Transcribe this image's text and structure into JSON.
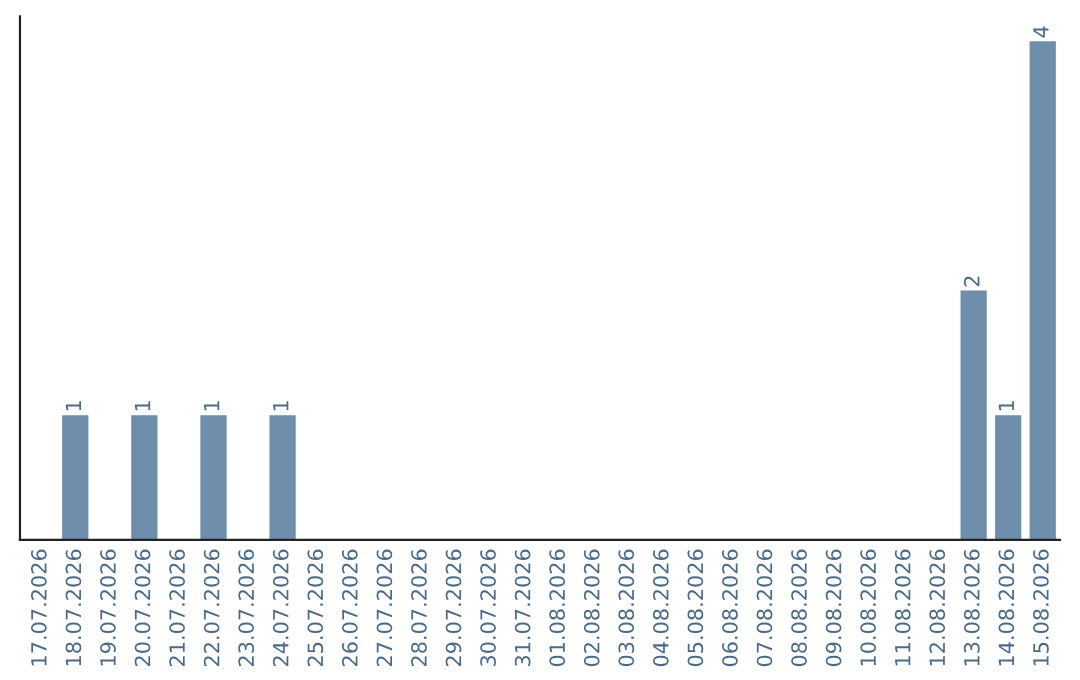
{
  "chart_data": {
    "type": "bar",
    "categories": [
      "17.07.2026",
      "18.07.2026",
      "19.07.2026",
      "20.07.2026",
      "21.07.2026",
      "22.07.2026",
      "23.07.2026",
      "24.07.2026",
      "25.07.2026",
      "26.07.2026",
      "27.07.2026",
      "28.07.2026",
      "29.07.2026",
      "30.07.2026",
      "31.07.2026",
      "01.08.2026",
      "02.08.2026",
      "03.08.2026",
      "04.08.2026",
      "05.08.2026",
      "06.08.2026",
      "07.08.2026",
      "08.08.2026",
      "09.08.2026",
      "10.08.2026",
      "11.08.2026",
      "12.08.2026",
      "13.08.2026",
      "14.08.2026",
      "15.08.2026"
    ],
    "values": [
      0,
      1,
      0,
      1,
      0,
      1,
      0,
      1,
      0,
      0,
      0,
      0,
      0,
      0,
      0,
      0,
      0,
      0,
      0,
      0,
      0,
      0,
      0,
      0,
      0,
      0,
      0,
      2,
      1,
      4
    ],
    "value_labels": [
      null,
      "1",
      null,
      "1",
      null,
      "1",
      null,
      "1",
      null,
      null,
      null,
      null,
      null,
      null,
      null,
      null,
      null,
      null,
      null,
      null,
      null,
      null,
      null,
      null,
      null,
      null,
      null,
      "2",
      "1",
      "4"
    ],
    "color": "#6e8eab",
    "ylim": [
      0,
      4.2
    ],
    "tick_labels": "x",
    "grid": false,
    "legend": false
  }
}
